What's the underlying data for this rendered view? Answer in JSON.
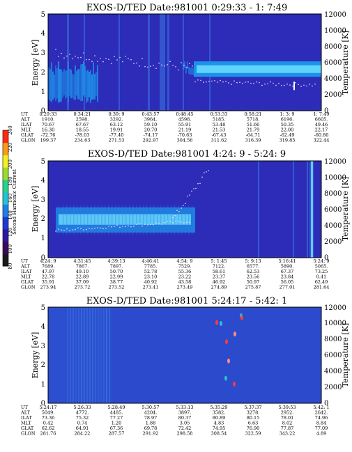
{
  "chart_data": [
    {
      "type": "heatmap",
      "title": "EXOS-D/TED   Date:981001  0:29:33 - 1: 7:49",
      "ylabel": "Energy [eV]",
      "y2label": "Temperature [K]",
      "ylim": [
        0,
        5
      ],
      "yticks": [
        "0",
        "1",
        "2",
        "3",
        "4",
        "5"
      ],
      "y2lim": [
        0,
        12000
      ],
      "y2ticks": [
        "0",
        "2000",
        "4000",
        "6000",
        "8000",
        "10000",
        "12000"
      ],
      "ephemeris": {
        "labels": [
          "UT",
          "ALT",
          "ILAT",
          "MLT",
          "GLAT",
          "GLON"
        ],
        "columns": [
          [
            "0:29:33",
            "1910.",
            "70.67",
            "16.30",
            "-72.76",
            "199.37"
          ],
          [
            "0:34:21",
            "2598.",
            "67.67",
            "18.55",
            "-78.03",
            "234.63"
          ],
          [
            "0:39: 9",
            "3292.",
            "63.12",
            "19.91",
            "-77.40",
            "271.53"
          ],
          [
            "0:43:57",
            "3964.",
            "59.10",
            "20.70",
            "-74.17",
            "292.97"
          ],
          [
            "0:48:45",
            "4598.",
            "55.91",
            "21.19",
            "-70.63",
            "304.56"
          ],
          [
            "0:53:33",
            "5185.",
            "53.48",
            "21.53",
            "-67.43",
            "311.62"
          ],
          [
            "0:58:21",
            "5718.",
            "51.66",
            "21.79",
            "-64.71",
            "316.39"
          ],
          [
            "1: 3: 9",
            "6196.",
            "50.35",
            "22.00",
            "-62.49",
            "319.85"
          ],
          [
            "1: 7:49",
            "6605.",
            "49.46",
            "22.17",
            "-60.80",
            "322.44"
          ]
        ]
      }
    },
    {
      "type": "heatmap",
      "title": "EXOS-D/TED   Date:981001  4:24: 9 - 5:24: 9",
      "ylabel": "Energy [eV]",
      "y2label": "Temperature [K]",
      "ylim": [
        0,
        5
      ],
      "yticks": [
        "0",
        "1",
        "2",
        "3",
        "4",
        "5"
      ],
      "y2lim": [
        0,
        12000
      ],
      "y2ticks": [
        "0",
        "2000",
        "4000",
        "6000",
        "8000",
        "10000",
        "12000"
      ],
      "ephemeris": {
        "labels": [
          "UT",
          "ALT",
          "ILAT",
          "MLT",
          "GLAT",
          "GLON"
        ],
        "columns": [
          [
            "4:24: 9",
            "7689.",
            "47.97",
            "22.78",
            "35.91",
            "273.94"
          ],
          [
            "4:31:45",
            "7867.",
            "49.10",
            "22.89",
            "37.09",
            "273.72"
          ],
          [
            "4:39:13",
            "7897.",
            "50.70",
            "22.99",
            "38.77",
            "273.52"
          ],
          [
            "4:46:41",
            "7785.",
            "52.78",
            "23.10",
            "40.92",
            "273.41"
          ],
          [
            "4:54: 9",
            "7529.",
            "55.36",
            "23.22",
            "43.58",
            "273.49"
          ],
          [
            "5: 1:45",
            "7122.",
            "58.61",
            "23.37",
            "46.92",
            "274.89"
          ],
          [
            "5: 9:13",
            "6577.",
            "62.53",
            "23.56",
            "50.97",
            "275.87"
          ],
          [
            "5:16:41",
            "5890.",
            "67.37",
            "23.84",
            "56.05",
            "277.01"
          ],
          [
            "5:24: 9",
            "5065.",
            "73.25",
            "0.41",
            "62.49",
            "281.64"
          ]
        ]
      }
    },
    {
      "type": "heatmap",
      "title": "EXOS-D/TED   Date:981001  5:24:17 - 5:42: 1",
      "ylabel": "Energy [eV]",
      "y2label": "Temperature [K]",
      "ylim": [
        0,
        5
      ],
      "yticks": [
        "0",
        "1",
        "2",
        "3",
        "4",
        "5"
      ],
      "y2lim": [
        0,
        12000
      ],
      "y2ticks": [
        "0",
        "2000",
        "4000",
        "6000",
        "8000",
        "10000",
        "12000"
      ],
      "ephemeris": {
        "labels": [
          "UT",
          "ALT",
          "ILAT",
          "MLT",
          "GLAT",
          "GLON"
        ],
        "columns": [
          [
            "5:24:17",
            "5049.",
            "73.36",
            "0.42",
            "62.62",
            "281.76"
          ],
          [
            "5:26:33",
            "4772.",
            "75.32",
            "0.74",
            "64.91",
            "284.22"
          ],
          [
            "5:28:49",
            "4485.",
            "77.27",
            "1.20",
            "67.36",
            "287.57"
          ],
          [
            "5:30:57",
            "4204.",
            "78.97",
            "1.88",
            "69.78",
            "291.92"
          ],
          [
            "5:33:13",
            "3897.",
            "80.37",
            "3.05",
            "72.42",
            "298.58"
          ],
          [
            "5:35:29",
            "3582.",
            "80.89",
            "4.83",
            "74.95",
            "308.54"
          ],
          [
            "5:37:37",
            "3278.",
            "80.15",
            "6.63",
            "76.90",
            "322.59"
          ],
          [
            "5:39:53",
            "2952.",
            "78.01",
            "8.02",
            "77.87",
            "343.22"
          ],
          [
            "5:42: 1",
            "2642.",
            "74.96",
            "8.84",
            "77.09",
            "4.89"
          ]
        ]
      }
    }
  ],
  "colorbar": {
    "label": "Second Harmonic Current",
    "ticks": [
      "80",
      "100",
      "120",
      "140",
      "160",
      "180",
      "200",
      "220",
      "240"
    ],
    "range": [
      80,
      240
    ],
    "colors": [
      "#1a1a1a",
      "#3b0a5e",
      "#2a1a9e",
      "#1e38d4",
      "#1f7fe8",
      "#22c4d4",
      "#28d28a",
      "#9bde2a",
      "#f4f020",
      "#ff9a18",
      "#ff2a10"
    ]
  },
  "colors": {
    "background": "#2c2cb8",
    "band": "#1e90e8",
    "band_core": "#6fe3ff",
    "stripe": "#3a7ae0",
    "temperature_trace": "#ffd6ff"
  }
}
